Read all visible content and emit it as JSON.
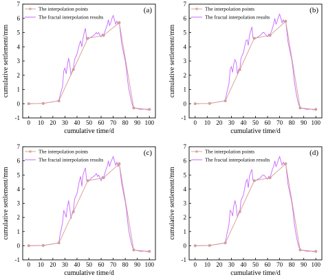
{
  "figure": {
    "colors": {
      "interpolation_points": "#d9a39a",
      "fractal_results": "#c865ff",
      "axis": "#000000"
    }
  },
  "chart_data": [
    {
      "type": "line",
      "panel_label": "(a)",
      "xlabel": "cumulative time/d",
      "ylabel": "cumulative settlement/mm",
      "xlim": [
        -5,
        105
      ],
      "ylim": [
        -1,
        7
      ],
      "xticks": [
        "0",
        "10",
        "20",
        "30",
        "40",
        "50",
        "60",
        "70",
        "80",
        "90",
        "100"
      ],
      "yticks": [
        "-1",
        "0",
        "1",
        "2",
        "3",
        "4",
        "5",
        "6",
        "7"
      ],
      "legend": [
        "The interpolation points",
        "The fractal interpolation results"
      ],
      "legend_position": "top-left",
      "grid": false,
      "series": [
        {
          "name": "The interpolation points",
          "marker": "circle",
          "x": [
            0,
            12,
            25,
            37,
            49,
            62,
            75,
            87,
            100
          ],
          "y": [
            0,
            0.02,
            0.2,
            2.4,
            4.6,
            4.8,
            5.7,
            -0.3,
            -0.4
          ]
        },
        {
          "name": "The fractal interpolation results",
          "marker": "none",
          "x": [
            0,
            12,
            25,
            26,
            28,
            29,
            30,
            31,
            32,
            33,
            34,
            35,
            36,
            37,
            38,
            40,
            42,
            43,
            44,
            45,
            46,
            47,
            48,
            49,
            50,
            52,
            54,
            55,
            56,
            57,
            58,
            59,
            60,
            61,
            62,
            64,
            65,
            66,
            67,
            68,
            69,
            70,
            71,
            72,
            73,
            74,
            75,
            77,
            79,
            80,
            81,
            82,
            83,
            84,
            85,
            86,
            87,
            90,
            93,
            96,
            98,
            100
          ],
          "y": [
            0,
            0.02,
            0.2,
            0.6,
            1.2,
            2.3,
            2.5,
            2.1,
            2.7,
            3.2,
            2.8,
            2.0,
            2.3,
            2.4,
            3.1,
            3.5,
            4.2,
            4.4,
            4.0,
            4.6,
            5.0,
            5.3,
            4.5,
            4.6,
            4.6,
            4.7,
            4.8,
            4.9,
            5.0,
            4.9,
            5.0,
            4.8,
            4.7,
            4.9,
            4.8,
            5.3,
            5.5,
            5.9,
            5.5,
            5.7,
            6.0,
            6.2,
            5.9,
            5.6,
            5.8,
            5.6,
            5.7,
            4.2,
            3.4,
            3.0,
            2.4,
            1.6,
            1.0,
            0.6,
            0.2,
            -0.1,
            -0.3,
            -0.35,
            -0.4,
            -0.38,
            -0.42,
            -0.4
          ]
        }
      ]
    },
    {
      "type": "line",
      "panel_label": "(b)",
      "xlabel": "cumulative time/d",
      "ylabel": "cumulative settlement/mm",
      "xlim": [
        -5,
        105
      ],
      "ylim": [
        -1,
        7
      ],
      "xticks": [
        "0",
        "10",
        "20",
        "30",
        "40",
        "50",
        "60",
        "70",
        "80",
        "90",
        "100"
      ],
      "yticks": [
        "-1",
        "0",
        "1",
        "2",
        "3",
        "4",
        "5",
        "6",
        "7"
      ],
      "legend": [
        "The interpolation points",
        "The fractal interpolation results"
      ],
      "legend_position": "top-left",
      "grid": false,
      "series": [
        {
          "name": "The interpolation points",
          "marker": "circle",
          "x": [
            0,
            12,
            25,
            37,
            49,
            62,
            75,
            87,
            100
          ],
          "y": [
            0,
            0.02,
            0.2,
            2.4,
            4.6,
            4.8,
            5.8,
            -0.3,
            -0.4
          ]
        },
        {
          "name": "The fractal interpolation results",
          "marker": "none",
          "x": [
            0,
            12,
            25,
            26,
            28,
            29,
            30,
            31,
            32,
            33,
            34,
            35,
            36,
            37,
            38,
            40,
            42,
            43,
            44,
            45,
            46,
            47,
            48,
            49,
            50,
            52,
            54,
            55,
            56,
            57,
            58,
            59,
            60,
            61,
            62,
            64,
            65,
            66,
            67,
            68,
            69,
            70,
            71,
            72,
            73,
            74,
            75,
            77,
            79,
            80,
            81,
            82,
            83,
            84,
            85,
            86,
            87,
            90,
            93,
            96,
            98,
            100
          ],
          "y": [
            0,
            0.02,
            0.2,
            0.7,
            1.4,
            2.4,
            2.6,
            2.2,
            2.8,
            3.1,
            2.9,
            2.1,
            2.4,
            2.4,
            3.2,
            3.6,
            4.4,
            4.5,
            4.1,
            4.8,
            5.1,
            5.4,
            4.6,
            4.6,
            4.6,
            4.7,
            4.8,
            4.9,
            5.0,
            5.0,
            4.9,
            4.8,
            4.7,
            4.9,
            4.8,
            5.3,
            5.6,
            6.0,
            5.6,
            5.8,
            6.1,
            6.3,
            6.0,
            5.7,
            5.9,
            5.7,
            5.8,
            4.3,
            3.5,
            3.1,
            2.5,
            1.7,
            1.1,
            0.6,
            0.2,
            -0.1,
            -0.3,
            -0.35,
            -0.4,
            -0.38,
            -0.42,
            -0.4
          ]
        }
      ]
    },
    {
      "type": "line",
      "panel_label": "(c)",
      "xlabel": "cumulative time/d",
      "ylabel": "cumulative settlement/mm",
      "xlim": [
        -5,
        105
      ],
      "ylim": [
        -1,
        7
      ],
      "xticks": [
        "0",
        "10",
        "20",
        "30",
        "40",
        "50",
        "60",
        "70",
        "80",
        "90",
        "100"
      ],
      "yticks": [
        "-1",
        "0",
        "1",
        "2",
        "3",
        "4",
        "5",
        "6",
        "7"
      ],
      "legend": [
        "The interpolation points",
        "The fractal interpolation results"
      ],
      "legend_position": "top-left",
      "grid": false,
      "series": [
        {
          "name": "The interpolation points",
          "marker": "circle",
          "x": [
            0,
            12,
            25,
            37,
            49,
            62,
            75,
            87,
            100
          ],
          "y": [
            0,
            0.02,
            0.2,
            2.4,
            4.6,
            4.8,
            5.8,
            -0.3,
            -0.4
          ]
        },
        {
          "name": "The fractal interpolation results",
          "marker": "none",
          "x": [
            0,
            12,
            25,
            26,
            28,
            29,
            30,
            31,
            32,
            33,
            34,
            35,
            36,
            37,
            38,
            40,
            42,
            43,
            44,
            45,
            46,
            47,
            48,
            49,
            50,
            52,
            54,
            55,
            56,
            57,
            58,
            59,
            60,
            61,
            62,
            64,
            65,
            66,
            67,
            68,
            69,
            70,
            71,
            72,
            73,
            74,
            75,
            77,
            79,
            80,
            81,
            82,
            83,
            84,
            85,
            86,
            87,
            90,
            93,
            96,
            98,
            100
          ],
          "y": [
            0,
            0.02,
            0.2,
            0.8,
            1.6,
            2.5,
            2.3,
            2.0,
            2.7,
            3.2,
            2.7,
            1.9,
            2.3,
            2.4,
            3.3,
            3.7,
            4.6,
            4.9,
            4.2,
            5.0,
            5.3,
            5.5,
            4.6,
            4.6,
            4.6,
            4.8,
            4.9,
            5.0,
            5.1,
            4.9,
            5.0,
            4.8,
            4.6,
            4.9,
            4.8,
            5.4,
            5.6,
            6.0,
            5.6,
            5.9,
            6.1,
            6.3,
            6.0,
            5.7,
            5.9,
            5.6,
            5.8,
            4.4,
            3.5,
            3.1,
            2.5,
            1.7,
            1.0,
            0.6,
            0.2,
            -0.1,
            -0.3,
            -0.35,
            -0.4,
            -0.38,
            -0.42,
            -0.4
          ]
        }
      ]
    },
    {
      "type": "line",
      "panel_label": "(d)",
      "xlabel": "cumulative time/d",
      "ylabel": "cumulative settlement/mm",
      "xlim": [
        -5,
        105
      ],
      "ylim": [
        -1,
        7
      ],
      "xticks": [
        "0",
        "10",
        "20",
        "30",
        "40",
        "50",
        "60",
        "70",
        "80",
        "90",
        "100"
      ],
      "yticks": [
        "-1",
        "0",
        "1",
        "2",
        "3",
        "4",
        "5",
        "6",
        "7"
      ],
      "legend": [
        "The interpolation points",
        "The fractal interpolation results"
      ],
      "legend_position": "top-left",
      "grid": false,
      "series": [
        {
          "name": "The interpolation points",
          "marker": "circle",
          "x": [
            0,
            12,
            25,
            37,
            49,
            62,
            75,
            87,
            100
          ],
          "y": [
            0,
            0.02,
            0.2,
            2.4,
            4.6,
            4.8,
            5.8,
            -0.3,
            -0.4
          ]
        },
        {
          "name": "The fractal interpolation results",
          "marker": "none",
          "x": [
            0,
            12,
            25,
            26,
            28,
            29,
            30,
            31,
            32,
            33,
            34,
            35,
            36,
            37,
            38,
            40,
            42,
            43,
            44,
            45,
            46,
            47,
            48,
            49,
            50,
            52,
            54,
            55,
            56,
            57,
            58,
            59,
            60,
            61,
            62,
            64,
            65,
            66,
            67,
            68,
            69,
            70,
            71,
            72,
            73,
            74,
            75,
            77,
            79,
            80,
            81,
            82,
            83,
            84,
            85,
            86,
            87,
            90,
            93,
            96,
            98,
            100
          ],
          "y": [
            0,
            0.02,
            0.2,
            0.7,
            1.5,
            2.5,
            2.4,
            2.1,
            2.8,
            3.2,
            2.8,
            2.0,
            2.3,
            2.4,
            3.2,
            3.6,
            4.5,
            4.7,
            4.1,
            4.9,
            5.2,
            5.4,
            4.6,
            4.6,
            4.6,
            4.7,
            4.8,
            4.9,
            5.0,
            5.0,
            4.9,
            4.8,
            4.7,
            4.9,
            4.8,
            5.4,
            5.6,
            6.0,
            5.6,
            5.8,
            6.1,
            6.3,
            6.0,
            5.7,
            5.9,
            5.7,
            5.8,
            4.3,
            3.5,
            3.1,
            2.5,
            1.7,
            1.1,
            0.6,
            0.2,
            -0.1,
            -0.3,
            -0.35,
            -0.4,
            -0.38,
            -0.42,
            -0.4
          ]
        }
      ]
    }
  ]
}
